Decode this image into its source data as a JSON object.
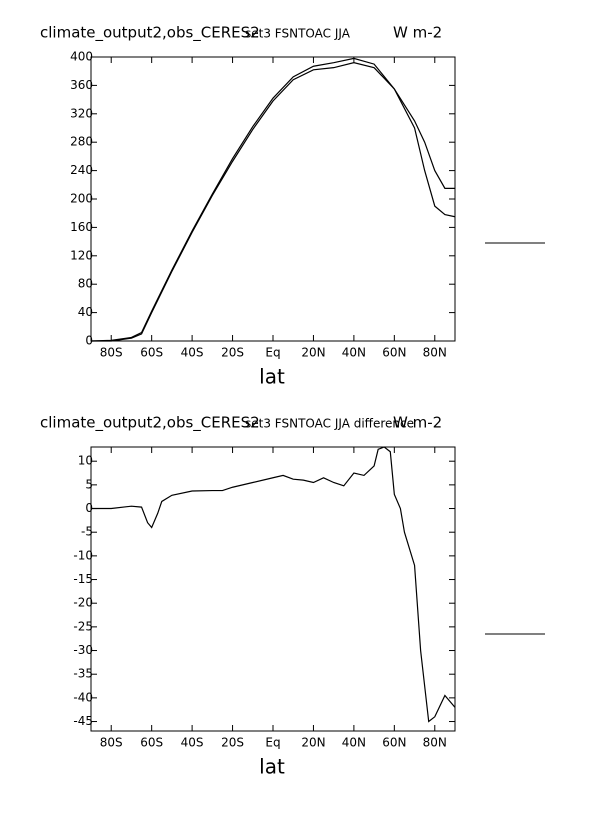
{
  "chart_data": [
    {
      "type": "line",
      "title": "climate_output2,obs_CERES2",
      "subtitle": "set3 FSNTOAC JJA",
      "units": "W m-2",
      "xlabel": "lat",
      "x": [
        -90,
        -80,
        -70,
        -65,
        -60,
        -50,
        -40,
        -30,
        -20,
        -10,
        0,
        10,
        20,
        30,
        40,
        50,
        60,
        70,
        75,
        80,
        85,
        90
      ],
      "series": [
        {
          "color": "#000000",
          "values": [
            0,
            1,
            5,
            12,
            42,
            100,
            155,
            207,
            257,
            302,
            342,
            372,
            387,
            392,
            398,
            390,
            355,
            300,
            240,
            190,
            178,
            175
          ]
        },
        {
          "color": "#000000",
          "values": [
            0,
            0,
            4,
            10,
            40,
            98,
            153,
            205,
            253,
            298,
            338,
            368,
            382,
            385,
            392,
            385,
            355,
            310,
            280,
            240,
            215,
            215
          ]
        }
      ],
      "xlim": [
        -90,
        90
      ],
      "xticks": [
        {
          "value": -80,
          "label": "80S"
        },
        {
          "value": -60,
          "label": "60S"
        },
        {
          "value": -40,
          "label": "40S"
        },
        {
          "value": -20,
          "label": "20S"
        },
        {
          "value": 0,
          "label": "Eq"
        },
        {
          "value": 20,
          "label": "20N"
        },
        {
          "value": 40,
          "label": "40N"
        },
        {
          "value": 60,
          "label": "60N"
        },
        {
          "value": 80,
          "label": "80N"
        }
      ],
      "ylim": [
        0,
        400
      ],
      "yticks": [
        0,
        40,
        80,
        120,
        160,
        200,
        240,
        280,
        320,
        360,
        400
      ]
    },
    {
      "type": "line",
      "title": "climate_output2,obs_CERES2",
      "subtitle": "set3 FSNTOAC JJA difference",
      "units": "W m-2",
      "xlabel": "lat",
      "x": [
        -90,
        -80,
        -70,
        -65,
        -62,
        -60,
        -57,
        -55,
        -50,
        -40,
        -30,
        -25,
        -20,
        -10,
        0,
        5,
        10,
        15,
        20,
        25,
        30,
        35,
        40,
        45,
        50,
        52,
        55,
        58,
        60,
        63,
        65,
        70,
        73,
        77,
        80,
        85,
        90
      ],
      "series": [
        {
          "color": "#000000",
          "values": [
            0,
            0,
            0.5,
            0.3,
            -3,
            -4,
            -1,
            1.5,
            2.8,
            3.7,
            3.8,
            3.8,
            4.5,
            5.5,
            6.5,
            7,
            6.2,
            6,
            5.5,
            6.5,
            5.5,
            4.8,
            7.5,
            7,
            9,
            12.5,
            13,
            12,
            3,
            0,
            -5,
            -12,
            -30,
            -45,
            -44,
            -39.5,
            -42
          ]
        }
      ],
      "xlim": [
        -90,
        90
      ],
      "xticks": [
        {
          "value": -80,
          "label": "80S"
        },
        {
          "value": -60,
          "label": "60S"
        },
        {
          "value": -40,
          "label": "40S"
        },
        {
          "value": -20,
          "label": "20S"
        },
        {
          "value": 0,
          "label": "Eq"
        },
        {
          "value": 20,
          "label": "20N"
        },
        {
          "value": 40,
          "label": "40N"
        },
        {
          "value": 60,
          "label": "60N"
        },
        {
          "value": 80,
          "label": "80N"
        }
      ],
      "ylim": [
        -47,
        13
      ],
      "yticks": [
        10,
        5,
        0,
        -5,
        -10,
        -15,
        -20,
        -25,
        -30,
        -35,
        -40,
        -45
      ]
    }
  ]
}
